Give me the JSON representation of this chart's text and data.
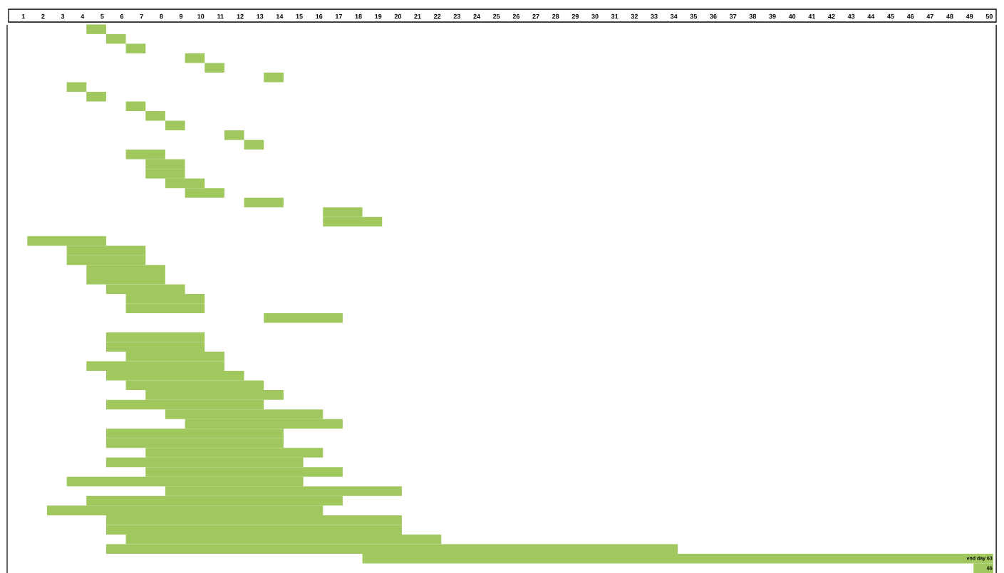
{
  "chart_data": {
    "type": "bar",
    "orientation": "horizontal",
    "color": "#a0c85f",
    "categories": [
      null,
      null,
      null,
      null,
      null,
      null,
      null,
      null,
      null,
      null,
      null,
      null,
      null,
      null,
      null,
      null,
      null,
      null,
      null,
      null,
      null,
      null,
      null,
      null,
      null,
      null,
      null,
      null,
      null,
      null,
      null,
      null,
      null,
      null,
      null,
      null,
      null,
      null,
      null,
      null,
      null,
      null,
      null,
      null,
      null,
      null,
      null,
      null,
      null,
      null,
      null,
      null,
      null,
      null,
      null,
      null,
      null
    ],
    "base": [
      4.2,
      5.2,
      6.2,
      9.2,
      10.2,
      13.2,
      3.2,
      4.2,
      6.2,
      7.2,
      8.2,
      11.2,
      12.2,
      6.2,
      7.2,
      7.2,
      8.2,
      9.2,
      12.2,
      16.2,
      16.2,
      null,
      1.2,
      3.2,
      3.2,
      4.2,
      4.2,
      5.2,
      6.2,
      6.2,
      13.2,
      null,
      5.2,
      5.2,
      6.2,
      4.2,
      5.2,
      6.2,
      7.2,
      5.2,
      8.2,
      9.2,
      5.2,
      5.2,
      7.2,
      5.2,
      7.2,
      3.2,
      8.2,
      4.2,
      2.2,
      5.2,
      5.2,
      6.2,
      5.2,
      18.2,
      49.2
    ],
    "values": [
      1,
      1,
      1,
      1,
      1,
      1,
      1,
      1,
      1,
      1,
      1,
      1,
      1,
      2,
      2,
      2,
      2,
      2,
      2,
      2,
      3,
      null,
      4,
      4,
      4,
      4,
      4,
      4,
      4,
      4,
      4,
      null,
      5,
      5,
      5,
      7,
      7,
      7,
      7,
      8,
      8,
      8,
      9,
      9,
      9,
      10,
      10,
      12,
      12,
      13,
      14,
      15,
      15,
      16,
      29,
      32,
      1
    ],
    "annotations": [
      "end day 63",
      "65"
    ],
    "xlim": [
      0.25,
      50.35
    ],
    "xticks": [
      1,
      2,
      3,
      4,
      5,
      6,
      7,
      8,
      9,
      10,
      11,
      12,
      13,
      14,
      15,
      16,
      17,
      18,
      19,
      20,
      21,
      22,
      23,
      24,
      25,
      26,
      27,
      28,
      29,
      30,
      31,
      32,
      33,
      34,
      35,
      36,
      37,
      38,
      39,
      40,
      41,
      42,
      43,
      44,
      45,
      46,
      47,
      48,
      49,
      50
    ],
    "tick_labels": "x"
  }
}
